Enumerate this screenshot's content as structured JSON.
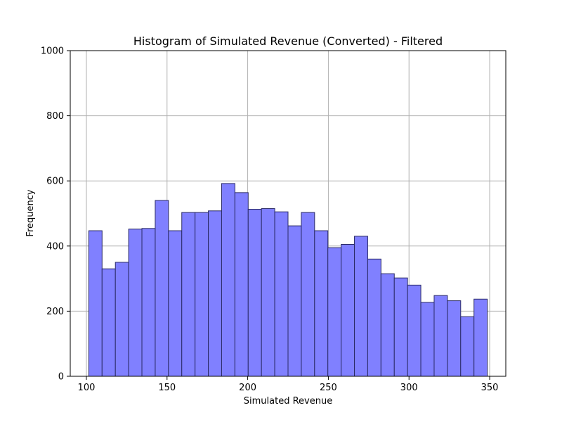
{
  "chart_data": {
    "type": "bar",
    "title": "Histogram of Simulated Revenue (Converted) - Filtered",
    "xlabel": "Simulated Revenue",
    "ylabel": "Frequency",
    "xlim": [
      90,
      360
    ],
    "ylim": [
      0,
      1000
    ],
    "x_ticks": [
      100,
      150,
      200,
      250,
      300,
      350
    ],
    "y_ticks": [
      0,
      200,
      400,
      600,
      800,
      1000
    ],
    "grid": true,
    "bin_range": [
      101.5,
      348.5
    ],
    "bins": [
      {
        "x0": 101.5,
        "x1": 109.73,
        "count": 447
      },
      {
        "x0": 109.73,
        "x1": 117.97,
        "count": 330
      },
      {
        "x0": 117.97,
        "x1": 126.2,
        "count": 350
      },
      {
        "x0": 126.2,
        "x1": 134.43,
        "count": 452
      },
      {
        "x0": 134.43,
        "x1": 142.67,
        "count": 454
      },
      {
        "x0": 142.67,
        "x1": 150.9,
        "count": 540
      },
      {
        "x0": 150.9,
        "x1": 159.13,
        "count": 447
      },
      {
        "x0": 159.13,
        "x1": 167.37,
        "count": 503
      },
      {
        "x0": 167.37,
        "x1": 175.6,
        "count": 503
      },
      {
        "x0": 175.6,
        "x1": 183.83,
        "count": 508
      },
      {
        "x0": 183.83,
        "x1": 192.07,
        "count": 592
      },
      {
        "x0": 192.07,
        "x1": 200.3,
        "count": 564
      },
      {
        "x0": 200.3,
        "x1": 208.53,
        "count": 513
      },
      {
        "x0": 208.53,
        "x1": 216.77,
        "count": 515
      },
      {
        "x0": 216.77,
        "x1": 225.0,
        "count": 505
      },
      {
        "x0": 225.0,
        "x1": 233.23,
        "count": 462
      },
      {
        "x0": 233.23,
        "x1": 241.47,
        "count": 503
      },
      {
        "x0": 241.47,
        "x1": 249.7,
        "count": 447
      },
      {
        "x0": 249.7,
        "x1": 257.93,
        "count": 395
      },
      {
        "x0": 257.93,
        "x1": 266.17,
        "count": 405
      },
      {
        "x0": 266.17,
        "x1": 274.4,
        "count": 430
      },
      {
        "x0": 274.4,
        "x1": 282.63,
        "count": 360
      },
      {
        "x0": 282.63,
        "x1": 290.87,
        "count": 315
      },
      {
        "x0": 290.87,
        "x1": 299.1,
        "count": 302
      },
      {
        "x0": 299.1,
        "x1": 307.33,
        "count": 280
      },
      {
        "x0": 307.33,
        "x1": 315.57,
        "count": 227
      },
      {
        "x0": 315.57,
        "x1": 323.8,
        "count": 248
      },
      {
        "x0": 323.8,
        "x1": 332.03,
        "count": 232
      },
      {
        "x0": 332.03,
        "x1": 340.27,
        "count": 183
      },
      {
        "x0": 340.27,
        "x1": 348.5,
        "count": 237
      }
    ],
    "colors": {
      "bar_fill": "#8080ff",
      "bar_edge": "#2a2a66",
      "grid": "#b0b0b0",
      "axis": "#000000"
    }
  }
}
